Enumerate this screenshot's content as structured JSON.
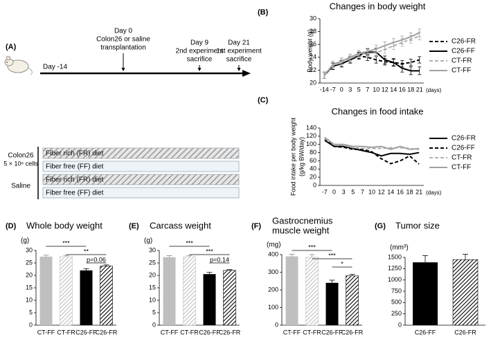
{
  "timeline": {
    "label": "(A)",
    "events": [
      {
        "day": "Day -14"
      },
      {
        "day": "Day 0",
        "notes": [
          "Colon26 or saline",
          "transplantation"
        ]
      },
      {
        "day": "Day 9",
        "notes": [
          "2nd experiment",
          "sacrifice"
        ]
      },
      {
        "day": "Day 21",
        "notes": [
          "1st experiment",
          "sacrifice"
        ]
      }
    ],
    "groups": [
      {
        "name": [
          "Colon26",
          "5 × 10⁶ cells"
        ],
        "diets": [
          "Fiber rich (FR) diet",
          "Fiber free (FF) diet"
        ]
      },
      {
        "name": [
          "Saline"
        ],
        "diets": [
          "Fiber rich (FR) diet",
          "Fiber free (FF) diet"
        ]
      }
    ]
  },
  "chart_data": [
    {
      "type": "line",
      "panel": "(B)",
      "title": "Changes in body weight",
      "ylabel": [
        "Body weight (g)"
      ],
      "xlabel": "(days)",
      "categories": [
        "-14",
        "-7",
        "0",
        "3",
        "5",
        "7",
        "10",
        "12",
        "14",
        "16",
        "18",
        "21"
      ],
      "ylim": [
        20,
        30
      ],
      "yticks": [
        20,
        22,
        24,
        26,
        28,
        30
      ],
      "series": [
        {
          "name": "C26-FR",
          "color": "#000000",
          "dash": true,
          "values": [
            21.2,
            22.6,
            23.0,
            23.6,
            24.2,
            24.0,
            23.6,
            23.3,
            23.2,
            23.0,
            23.2,
            23.6
          ],
          "errors": [
            0.5,
            0.5,
            0.5,
            0.5,
            0.5,
            0.5,
            0.5,
            0.5,
            0.5,
            0.5,
            0.5,
            0.5
          ]
        },
        {
          "name": "C26-FF",
          "color": "#000000",
          "dash": false,
          "values": [
            21.2,
            22.6,
            23.0,
            23.6,
            24.3,
            24.8,
            24.8,
            23.6,
            23.2,
            22.3,
            21.9,
            21.9
          ],
          "errors": [
            0.5,
            0.5,
            0.5,
            0.5,
            0.5,
            0.5,
            0.6,
            0.6,
            0.6,
            0.6,
            0.6,
            0.6
          ]
        },
        {
          "name": "CT-FR",
          "color": "#b0b0b0",
          "dash": true,
          "values": [
            21.2,
            22.7,
            23.2,
            23.8,
            24.4,
            24.6,
            24.7,
            25.2,
            25.8,
            26.3,
            26.8,
            27.3
          ],
          "errors": [
            0.5,
            0.5,
            0.5,
            0.5,
            0.5,
            0.5,
            0.6,
            0.6,
            0.6,
            0.6,
            0.6,
            0.6
          ]
        },
        {
          "name": "CT-FF",
          "color": "#a0a0a0",
          "dash": false,
          "values": [
            21.2,
            22.9,
            23.4,
            24.0,
            24.6,
            24.9,
            25.3,
            25.8,
            26.3,
            26.7,
            27.2,
            27.8
          ],
          "errors": [
            0.5,
            0.5,
            0.5,
            0.5,
            0.5,
            0.5,
            0.6,
            0.6,
            0.6,
            0.6,
            0.6,
            0.6
          ]
        }
      ]
    },
    {
      "type": "line",
      "panel": "(C)",
      "title": "Changes in food intake",
      "ylabel": [
        "Food intake per body weight",
        "(g/kg BW/day)"
      ],
      "xlabel": "(days)",
      "categories": [
        "-7",
        "0",
        "3",
        "5",
        "7",
        "10",
        "12",
        "14",
        "16",
        "18",
        "21"
      ],
      "ylim": [
        0,
        140
      ],
      "yticks": [
        0,
        20,
        40,
        60,
        80,
        100,
        120,
        140
      ],
      "series": [
        {
          "name": "C26-FR",
          "color": "#000000",
          "dash": false,
          "values": [
            110,
            95,
            95,
            90,
            85,
            80,
            72,
            78,
            78,
            76,
            80
          ]
        },
        {
          "name": "C26-FF",
          "color": "#000000",
          "dash": true,
          "values": [
            115,
            95,
            93,
            88,
            88,
            82,
            65,
            53,
            60,
            72,
            52
          ]
        },
        {
          "name": "CT-FR",
          "color": "#b0b0b0",
          "dash": true,
          "values": [
            115,
            100,
            98,
            92,
            90,
            90,
            90,
            92,
            92,
            90,
            88
          ]
        },
        {
          "name": "CT-FF",
          "color": "#a0a0a0",
          "dash": false,
          "values": [
            117,
            100,
            100,
            95,
            95,
            93,
            95,
            88,
            95,
            88,
            90
          ]
        }
      ]
    },
    {
      "type": "bar",
      "panel": "(D)",
      "title": [
        "Whole body weight"
      ],
      "ylabel": "(g)",
      "categories": [
        "CT-FF",
        "CT-FR",
        "C26-FF",
        "C26-FR"
      ],
      "values": [
        27.5,
        27.5,
        22.0,
        23.8
      ],
      "errors": [
        0.6,
        0.5,
        0.7,
        0.4
      ],
      "colors": [
        "#bfbfbf",
        "#bfbfbf",
        "#000000",
        "#000000"
      ],
      "hatch": [
        false,
        true,
        false,
        true
      ],
      "ylim": [
        0,
        30
      ],
      "yticks": [
        0,
        5,
        10,
        15,
        20,
        25,
        30
      ],
      "annotations": [
        {
          "between": [
            "CT-FF",
            "C26-FF"
          ],
          "text": "***"
        },
        {
          "between": [
            "CT-FR",
            "C26-FR"
          ],
          "text": "**"
        },
        {
          "between": [
            "C26-FF",
            "C26-FR"
          ],
          "text": "p=0.06"
        }
      ]
    },
    {
      "type": "bar",
      "panel": "(E)",
      "title": [
        "Carcass weight"
      ],
      "ylabel": "(g)",
      "categories": [
        "CT-FF",
        "CT-FR",
        "C26-FF",
        "C26-FR"
      ],
      "values": [
        27.3,
        27.5,
        20.5,
        22.0
      ],
      "errors": [
        0.6,
        0.5,
        0.7,
        0.3
      ],
      "colors": [
        "#bfbfbf",
        "#bfbfbf",
        "#000000",
        "#000000"
      ],
      "hatch": [
        false,
        true,
        false,
        true
      ],
      "ylim": [
        0,
        30
      ],
      "yticks": [
        0,
        5,
        10,
        15,
        20,
        25,
        30
      ],
      "annotations": [
        {
          "between": [
            "CT-FF",
            "C26-FF"
          ],
          "text": "***"
        },
        {
          "between": [
            "CT-FR",
            "C26-FR"
          ],
          "text": "***"
        },
        {
          "between": [
            "C26-FF",
            "C26-FR"
          ],
          "text": "p=0.14"
        }
      ]
    },
    {
      "type": "bar",
      "panel": "(F)",
      "title": [
        "Gastrocnemius",
        "muscle weight"
      ],
      "ylabel": "(mg)",
      "categories": [
        "CT-FF",
        "CT-FR",
        "C26-FF",
        "C26-FR"
      ],
      "values": [
        390,
        385,
        240,
        280
      ],
      "errors": [
        12,
        15,
        15,
        8
      ],
      "colors": [
        "#bfbfbf",
        "#bfbfbf",
        "#000000",
        "#000000"
      ],
      "hatch": [
        false,
        true,
        false,
        true
      ],
      "ylim": [
        0,
        400
      ],
      "yticks": [
        0,
        100,
        200,
        300,
        400
      ],
      "annotations": [
        {
          "between": [
            "CT-FF",
            "C26-FF"
          ],
          "text": "***"
        },
        {
          "between": [
            "CT-FR",
            "C26-FR"
          ],
          "text": "***"
        },
        {
          "between": [
            "C26-FF",
            "C26-FR"
          ],
          "text": "*"
        }
      ]
    },
    {
      "type": "bar",
      "panel": "(G)",
      "title": [
        "Tumor size"
      ],
      "ylabel": "(mm³)",
      "categories": [
        "C26-FF",
        "C26-FR"
      ],
      "values": [
        1390,
        1450
      ],
      "errors": [
        150,
        120
      ],
      "colors": [
        "#000000",
        "#000000"
      ],
      "hatch": [
        false,
        true
      ],
      "ylim": [
        0,
        1500
      ],
      "yticks": [
        0,
        250,
        500,
        750,
        1000,
        1250,
        1500
      ]
    }
  ]
}
